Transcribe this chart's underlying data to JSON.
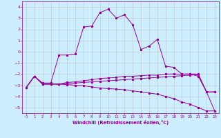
{
  "xlabel": "Windchill (Refroidissement éolien,°C)",
  "x": [
    0,
    1,
    2,
    3,
    4,
    5,
    6,
    7,
    8,
    9,
    10,
    11,
    12,
    13,
    14,
    15,
    16,
    17,
    18,
    19,
    20,
    21,
    22,
    23
  ],
  "line1": [
    -3.2,
    -2.2,
    -2.8,
    -2.8,
    -0.3,
    -0.3,
    -0.2,
    2.2,
    2.3,
    3.5,
    3.8,
    3.0,
    3.3,
    2.4,
    0.2,
    0.5,
    1.1,
    -1.3,
    -1.4,
    -2.0,
    -2.0,
    -2.2,
    -3.6,
    -3.6
  ],
  "line2": [
    -3.2,
    -2.2,
    -2.9,
    -2.9,
    -2.9,
    -2.75,
    -2.7,
    -2.6,
    -2.5,
    -2.4,
    -2.35,
    -2.3,
    -2.2,
    -2.2,
    -2.15,
    -2.1,
    -2.1,
    -2.0,
    -2.0,
    -2.0,
    -2.0,
    -2.0,
    -3.6,
    -3.6
  ],
  "line3": [
    -3.2,
    -2.2,
    -2.9,
    -2.9,
    -2.9,
    -2.85,
    -2.8,
    -2.75,
    -2.7,
    -2.65,
    -2.6,
    -2.55,
    -2.5,
    -2.45,
    -2.4,
    -2.35,
    -2.3,
    -2.25,
    -2.2,
    -2.15,
    -2.1,
    -2.05,
    -3.6,
    -5.3
  ],
  "line4": [
    -3.2,
    -2.2,
    -2.9,
    -2.9,
    -2.9,
    -2.95,
    -3.0,
    -3.05,
    -3.15,
    -3.25,
    -3.3,
    -3.35,
    -3.4,
    -3.5,
    -3.6,
    -3.7,
    -3.8,
    -4.0,
    -4.2,
    -4.5,
    -4.7,
    -5.0,
    -5.3,
    -5.3
  ],
  "bg_color": "#cceeff",
  "grid_color": "#bbbbbb",
  "line_color": "#990099",
  "ylim": [
    -5.5,
    4.5
  ],
  "xlim": [
    -0.5,
    23.5
  ],
  "yticks": [
    -5,
    -4,
    -3,
    -2,
    -1,
    0,
    1,
    2,
    3,
    4
  ],
  "xticks": [
    0,
    1,
    2,
    3,
    4,
    5,
    6,
    7,
    8,
    9,
    10,
    11,
    12,
    13,
    14,
    15,
    16,
    17,
    18,
    19,
    20,
    21,
    22,
    23
  ],
  "tick_fontsize": 4.0,
  "xlabel_fontsize": 4.8,
  "lw": 0.7,
  "ms": 2.0
}
